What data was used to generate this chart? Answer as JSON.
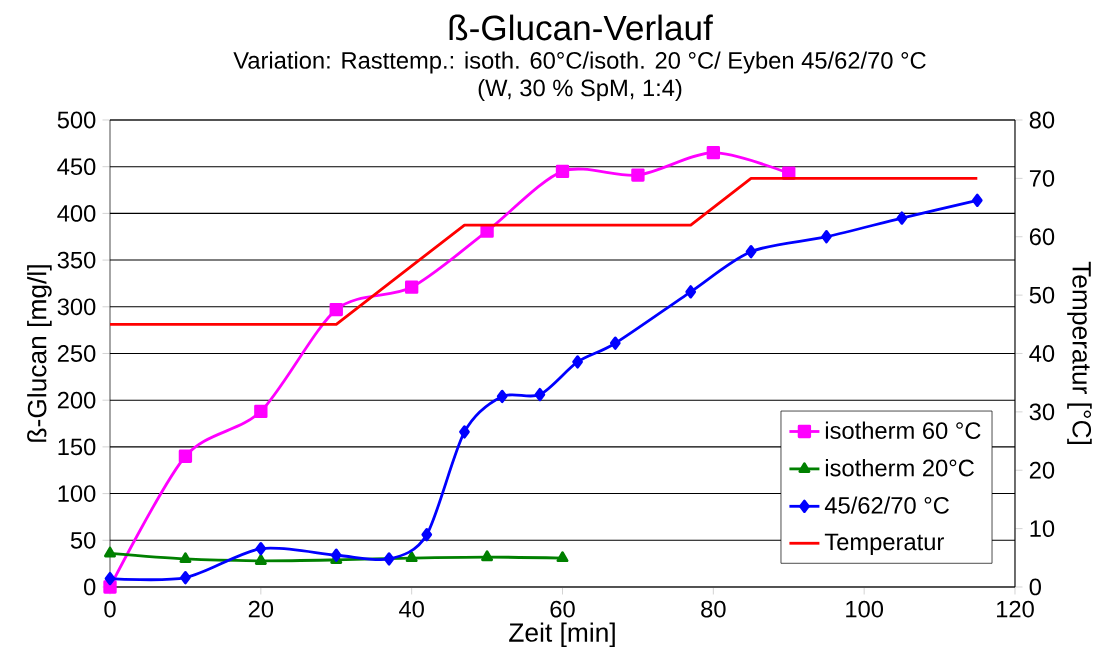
{
  "chart_data": {
    "type": "line",
    "title": "ß-Glucan-Verlauf",
    "subtitle": "Variation: Rasttemp.: isoth. 60°C/isoth. 20 °C/ Eyben 45/62/70 °C",
    "annotations": [
      "(W, 30 % SpM, 1:4)"
    ],
    "xlabel": "Zeit [min]",
    "ylabel": "ß-Glucan [mg/l]",
    "y2label": "Temperatur [°C]",
    "xlim": [
      0,
      120
    ],
    "xticks": [
      0,
      20,
      40,
      60,
      80,
      100,
      120
    ],
    "ylim": [
      0,
      500
    ],
    "yticks": [
      0,
      50,
      100,
      150,
      200,
      250,
      300,
      350,
      400,
      450,
      500
    ],
    "y2lim": [
      0,
      80
    ],
    "y2ticks": [
      0,
      10,
      20,
      30,
      40,
      50,
      60,
      70,
      80
    ],
    "grid": "y",
    "legend": "bottom right",
    "series": [
      {
        "name": "isotherm 60 °C",
        "color": "#ff00ff",
        "marker": "square",
        "x": [
          0,
          10,
          20,
          30,
          40,
          50,
          60,
          70,
          80,
          90
        ],
        "values": [
          0,
          140,
          188,
          297,
          321,
          381,
          445,
          441,
          465,
          443
        ]
      },
      {
        "name": "isotherm 20°C",
        "color": "#008000",
        "marker": "triangle",
        "x": [
          0,
          10,
          20,
          30,
          40,
          50,
          60
        ],
        "values": [
          36,
          30,
          28,
          29,
          31,
          32,
          31
        ]
      },
      {
        "name": "45/62/70 °C",
        "color": "#0000ff",
        "marker": "diamond",
        "x": [
          0,
          10,
          20,
          30,
          37,
          42,
          47,
          52,
          57,
          62,
          67,
          77,
          85,
          95,
          105,
          115
        ],
        "values": [
          9,
          10,
          41,
          34,
          30,
          56,
          166,
          204,
          206,
          241,
          261,
          316,
          359,
          375,
          395,
          414
        ]
      },
      {
        "name": "Temperatur",
        "color": "#ff0000",
        "marker": "none",
        "axis": "y2",
        "x": [
          0,
          30,
          47,
          77,
          85,
          115
        ],
        "values": [
          45,
          45,
          62,
          62,
          70,
          70
        ]
      }
    ]
  }
}
